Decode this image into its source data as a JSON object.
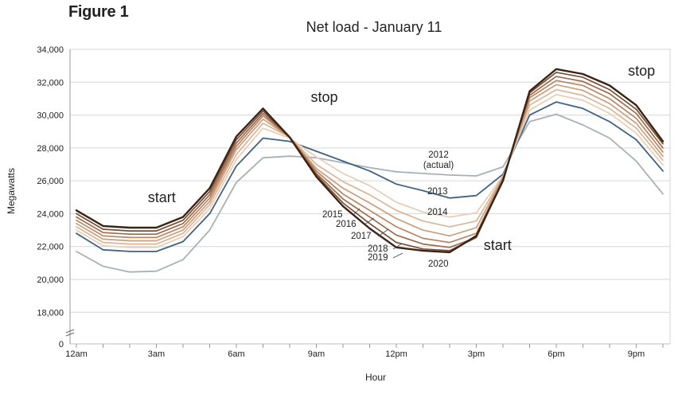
{
  "figure_label": "Figure 1",
  "chart_data": {
    "type": "line",
    "title": "Net load - January 11",
    "xlabel": "Hour",
    "ylabel": "Megawatts",
    "x_ticks": [
      "12am",
      "3am",
      "6am",
      "9am",
      "12pm",
      "3pm",
      "6pm",
      "9pm"
    ],
    "y_ticks": [
      {
        "value": 18000,
        "label": "18,000"
      },
      {
        "value": 20000,
        "label": "20,000"
      },
      {
        "value": 22000,
        "label": "22,000"
      },
      {
        "value": 24000,
        "label": "24,000"
      },
      {
        "value": 26000,
        "label": "26,000"
      },
      {
        "value": 28000,
        "label": "28,000"
      },
      {
        "value": 30000,
        "label": "30,000"
      },
      {
        "value": 32000,
        "label": "32,000"
      },
      {
        "value": 34000,
        "label": "34,000"
      }
    ],
    "y_zero_label": "0",
    "ylim": [
      16900,
      34000
    ],
    "axis_break": true,
    "grid": "horizontal",
    "x_hours": [
      0,
      1,
      2,
      3,
      4,
      5,
      6,
      7,
      8,
      9,
      10,
      11,
      12,
      13,
      14,
      15,
      16,
      17,
      18,
      19,
      20,
      21,
      22,
      23
    ],
    "series": [
      {
        "name": "2012 (actual)",
        "color": "#a9b0b8",
        "values": [
          21700,
          20800,
          20450,
          20500,
          21200,
          23000,
          25900,
          27400,
          27500,
          27400,
          27100,
          26800,
          26550,
          26450,
          26350,
          26300,
          26850,
          29600,
          30050,
          29400,
          28600,
          27200,
          25200,
          25200
        ]
      },
      {
        "name": "2013",
        "color": "#3f6384",
        "values": [
          22800,
          21800,
          21700,
          21700,
          22300,
          24000,
          26900,
          28600,
          28400,
          27800,
          27200,
          26600,
          25800,
          25400,
          24950,
          25100,
          26400,
          30000,
          30800,
          30400,
          29600,
          28500,
          26600,
          26600
        ]
      },
      {
        "name": "2014",
        "color": "#e8cdb4",
        "values": [
          23000,
          22050,
          21950,
          21950,
          22600,
          24300,
          27300,
          29200,
          28600,
          27450,
          26450,
          25700,
          24700,
          24100,
          23800,
          24050,
          26300,
          30300,
          31250,
          30900,
          30100,
          28900,
          26950,
          26950
        ]
      },
      {
        "name": "2015",
        "color": "#dcb596",
        "values": [
          23200,
          22250,
          22150,
          22150,
          22800,
          24550,
          27600,
          29500,
          28650,
          27000,
          25950,
          25150,
          24200,
          23550,
          23200,
          23550,
          26250,
          30600,
          31550,
          31200,
          30400,
          29200,
          27250,
          27250
        ]
      },
      {
        "name": "2016",
        "color": "#cc9e7c",
        "values": [
          23400,
          22450,
          22350,
          22350,
          23000,
          24750,
          27900,
          29750,
          28650,
          26750,
          25550,
          24650,
          23700,
          23000,
          22650,
          23150,
          26200,
          30850,
          31850,
          31500,
          30700,
          29500,
          27500,
          27500
        ]
      },
      {
        "name": "2017",
        "color": "#b98664",
        "values": [
          23600,
          22650,
          22550,
          22550,
          23200,
          24950,
          28100,
          29950,
          28650,
          26600,
          25200,
          24200,
          23200,
          22500,
          22250,
          22800,
          26150,
          31050,
          32100,
          31800,
          31000,
          29800,
          27750,
          27750
        ]
      },
      {
        "name": "2018",
        "color": "#9d6b4c",
        "values": [
          23800,
          22850,
          22750,
          22750,
          23400,
          25150,
          28300,
          30100,
          28650,
          26450,
          24900,
          23800,
          22700,
          22150,
          21950,
          22550,
          26100,
          31200,
          32350,
          32050,
          31300,
          30100,
          28000,
          28000
        ]
      },
      {
        "name": "2019",
        "color": "#7a4f35",
        "values": [
          24000,
          23050,
          22950,
          22950,
          23600,
          25350,
          28500,
          30250,
          28650,
          26350,
          24650,
          23400,
          22250,
          21850,
          21750,
          22550,
          26050,
          31350,
          32600,
          32300,
          31550,
          30350,
          28250,
          28250
        ]
      },
      {
        "name": "2020",
        "color": "#3a2416",
        "values": [
          24200,
          23250,
          23150,
          23150,
          23800,
          25550,
          28700,
          30400,
          28650,
          26250,
          24450,
          23100,
          21950,
          21750,
          21650,
          22650,
          26000,
          31450,
          32800,
          32500,
          31800,
          30600,
          28400,
          28400
        ]
      }
    ],
    "annotations": [
      {
        "text": "start",
        "x": 3.2,
        "y": 24700
      },
      {
        "text": "stop",
        "x": 9.3,
        "y": 30800
      },
      {
        "text": "start",
        "x": 15.8,
        "y": 21800
      },
      {
        "text": "stop",
        "x": 21.2,
        "y": 32400
      }
    ]
  }
}
